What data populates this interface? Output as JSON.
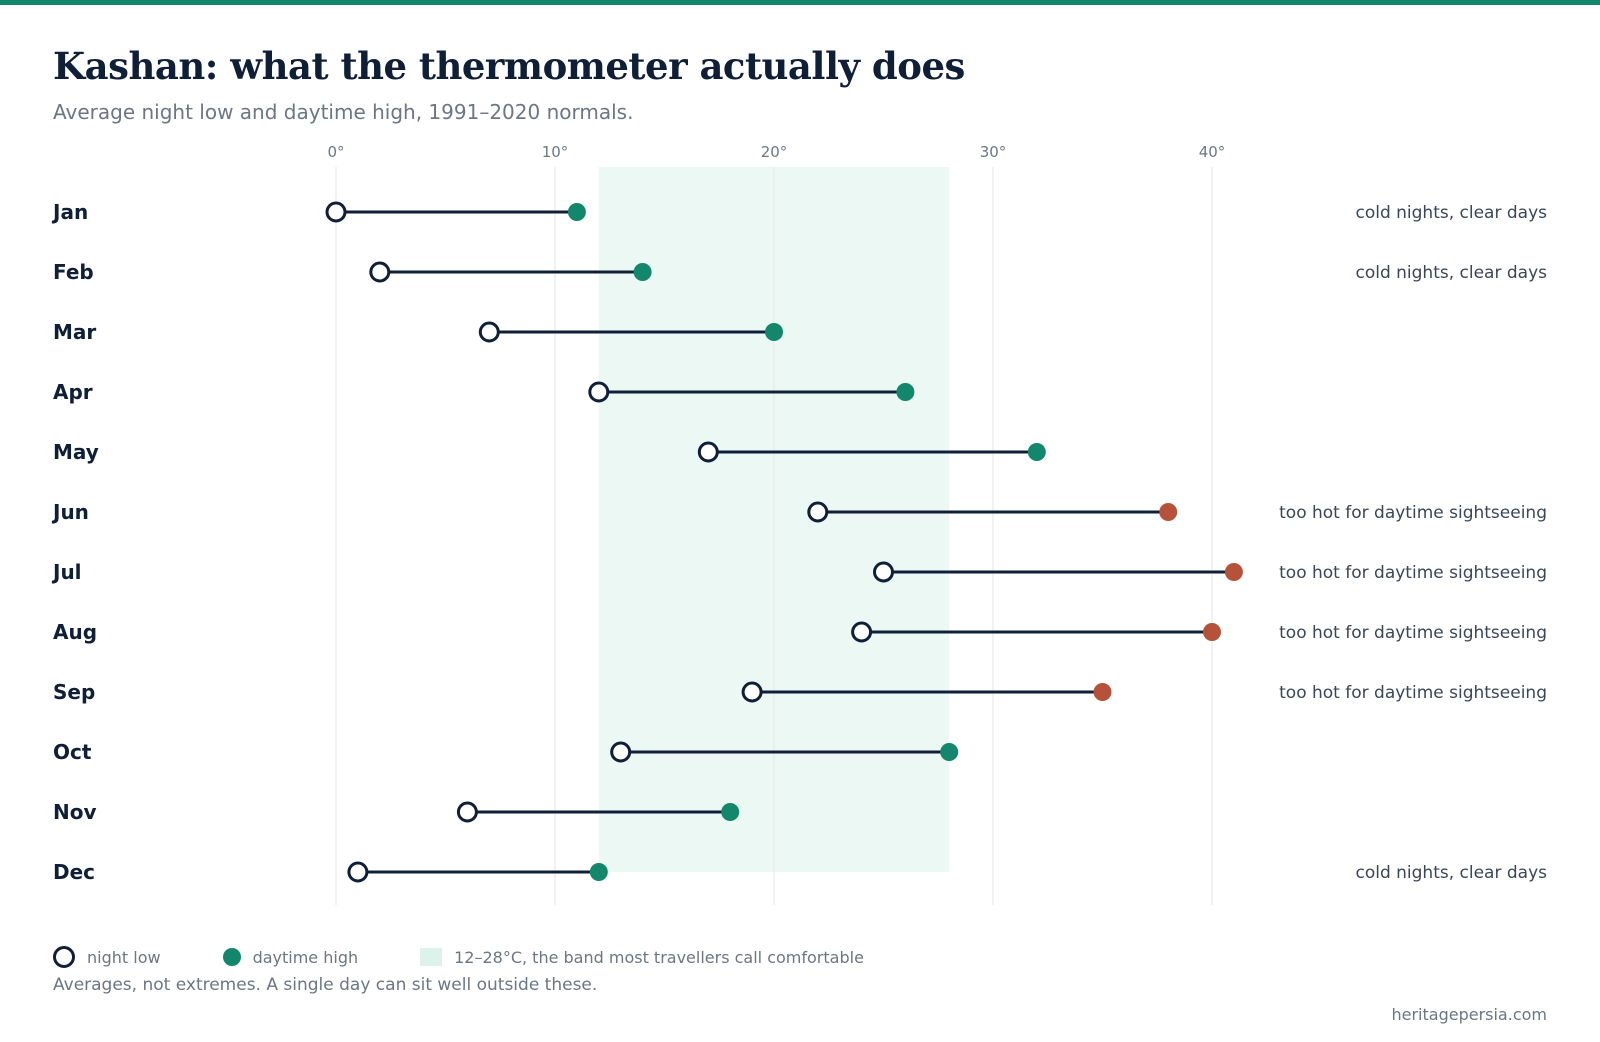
{
  "header": {
    "title": "Kashan: what the thermometer actually does",
    "subtitle": "Average night low and daytime high, 1991–2020 normals."
  },
  "chart_data": {
    "type": "dumbbell",
    "categories": [
      "Jan",
      "Feb",
      "Mar",
      "Apr",
      "May",
      "Jun",
      "Jul",
      "Aug",
      "Sep",
      "Oct",
      "Nov",
      "Dec"
    ],
    "series": [
      {
        "name": "night low",
        "values": [
          0,
          2,
          7,
          12,
          17,
          22,
          25,
          24,
          19,
          13,
          6,
          1
        ]
      },
      {
        "name": "daytime high",
        "values": [
          11,
          14,
          20,
          26,
          32,
          38,
          41,
          40,
          35,
          28,
          18,
          12
        ]
      }
    ],
    "notes": [
      "cold nights, clear days",
      "cold nights, clear days",
      "",
      "",
      "",
      "too hot for daytime sightseeing",
      "too hot for daytime sightseeing",
      "too hot for daytime sightseeing",
      "too hot for daytime sightseeing",
      "",
      "",
      "cold nights, clear days"
    ],
    "x_ticks": [
      0,
      10,
      20,
      30,
      40
    ],
    "x_tick_labels": [
      "0°",
      "10°",
      "20°",
      "30°",
      "40°"
    ],
    "xlim": [
      0,
      40
    ],
    "comfort_band": [
      12,
      28
    ],
    "hot_threshold": 35,
    "grid": true,
    "legend_placement": "bottom-left",
    "colors": {
      "low_stroke": "#0f1f38",
      "high": "#12876c",
      "high_hot": "#b6523a",
      "band": "#ebf8f3",
      "grid": "#e4e6ea",
      "line": "#0f1f38"
    }
  },
  "legend": {
    "low_label": "night low",
    "high_label": "daytime high",
    "band_label": "12–28°C, the band most travellers call comfortable"
  },
  "footnote": "Averages, not extremes. A single day can sit well outside these.",
  "credit": "heritagepersia.com"
}
